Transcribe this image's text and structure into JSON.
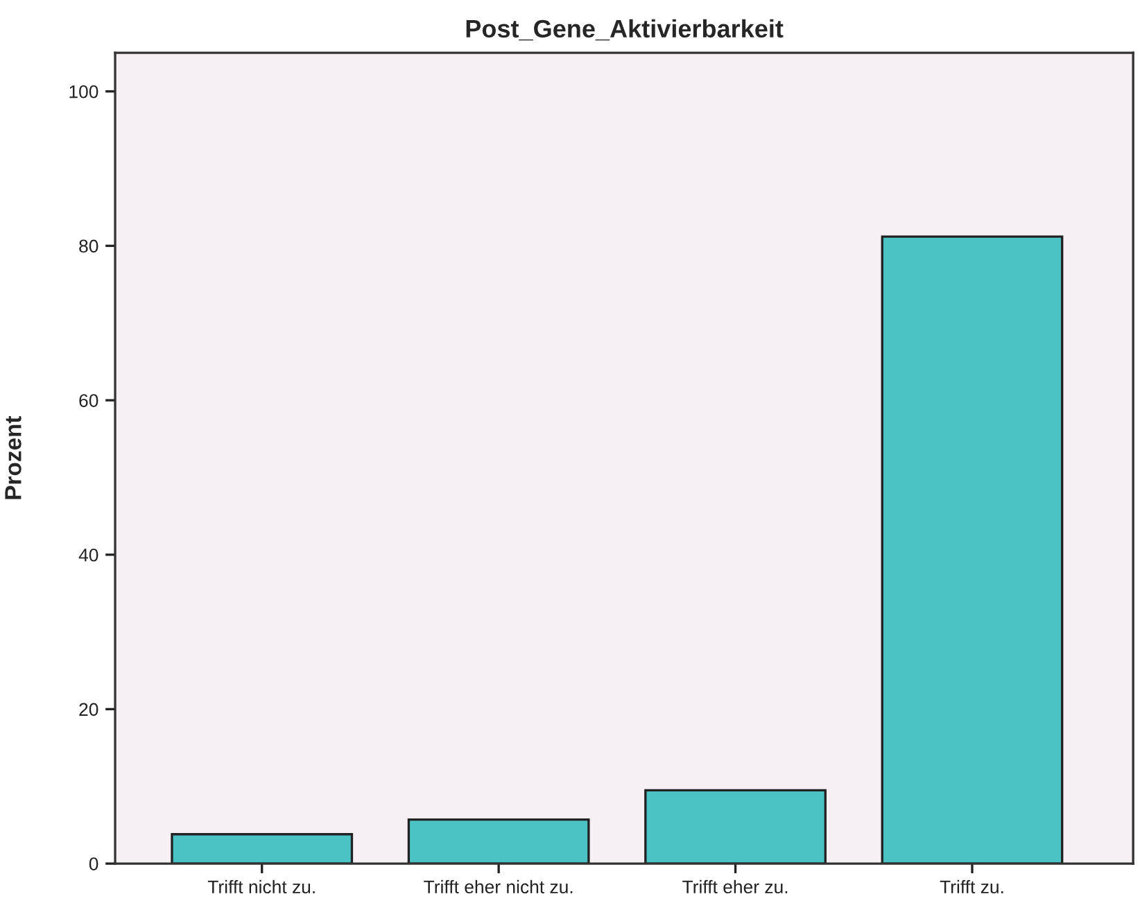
{
  "chart_data": {
    "type": "bar",
    "title": "Post_Gene_Aktivierbarkeit",
    "ylabel": "Prozent",
    "categories": [
      "Trifft nicht zu.",
      "Trifft eher nicht zu.",
      "Trifft eher zu.",
      "Trifft zu."
    ],
    "values": [
      3.8,
      5.7,
      9.5,
      81.2
    ],
    "color": "#4bc3c4",
    "ylim": [
      0,
      105
    ],
    "yticks": [
      0,
      20,
      40,
      60,
      80,
      100
    ],
    "grid": false,
    "legend": false
  }
}
